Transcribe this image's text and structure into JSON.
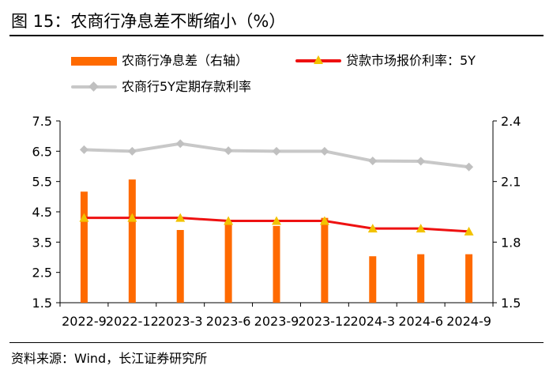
{
  "title": "图 15：农商行净息差不断缩小（%）",
  "source": "资料来源：Wind，长江证券研究所",
  "colors": {
    "bar": "#ff6a00",
    "loan_prime_rate": "#ee1111",
    "loan_prime_marker": "#f2c200",
    "deposit_rate": "#c8c8c8",
    "deposit_marker": "#c0c0c0",
    "axis": "#000000"
  },
  "legend": {
    "bar_label": "农商行净息差（右轴）",
    "lpr_label": "贷款市场报价利率：5Y",
    "deposit_label": "农商行5Y定期存款利率"
  },
  "chart_data": {
    "type": "bar",
    "categories": [
      "2022-9",
      "2022-12",
      "2023-3",
      "2023-6",
      "2023-9",
      "2023-12",
      "2024-3",
      "2024-6",
      "2024-9"
    ],
    "y_left": {
      "range": [
        1.5,
        7.5
      ],
      "ticks": [
        "7.5",
        "6.5",
        "5.5",
        "4.5",
        "3.5",
        "2.5",
        "1.5"
      ]
    },
    "y_right": {
      "range": [
        1.5,
        2.4
      ],
      "ticks": [
        "2.4",
        "2.1",
        "1.8",
        "1.5"
      ]
    },
    "series": [
      {
        "name": "农商行净息差（右轴）",
        "type": "bar",
        "axis": "right",
        "values": [
          2.05,
          2.11,
          1.86,
          1.91,
          1.88,
          1.92,
          1.73,
          1.74,
          1.74
        ]
      },
      {
        "name": "贷款市场报价利率：5Y",
        "type": "line",
        "axis": "left",
        "marker": "triangle",
        "values": [
          4.3,
          4.3,
          4.3,
          4.2,
          4.2,
          4.2,
          3.95,
          3.95,
          3.85
        ]
      },
      {
        "name": "农商行5Y定期存款利率",
        "type": "line",
        "axis": "left",
        "marker": "diamond",
        "values": [
          6.55,
          6.5,
          6.75,
          6.52,
          6.5,
          6.5,
          6.18,
          6.17,
          5.98
        ]
      }
    ],
    "grid": false,
    "legend_position": "top"
  }
}
